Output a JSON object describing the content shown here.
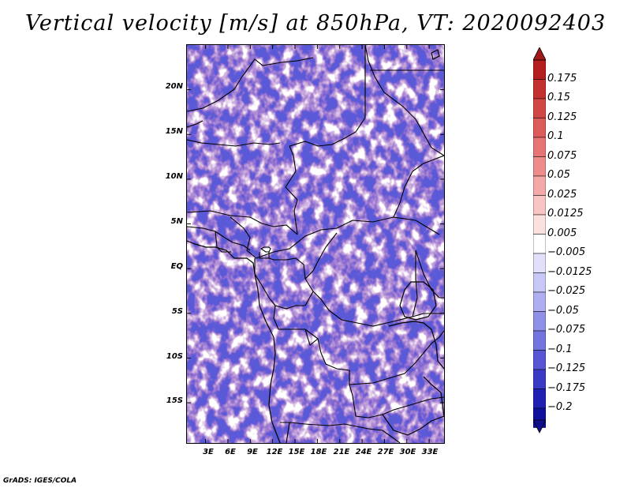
{
  "title": "Vertical velocity [m/s] at 850hPa, VT: 2020092403",
  "credit": "GrADS: IGES/COLA",
  "map": {
    "lat_labels": [
      "20N",
      "15N",
      "10N",
      "5N",
      "EQ",
      "5S",
      "10S",
      "15S"
    ],
    "lon_labels": [
      "3E",
      "6E",
      "9E",
      "12E",
      "15E",
      "18E",
      "21E",
      "24E",
      "27E",
      "30E",
      "33E"
    ],
    "lon_range": [
      0.5,
      35.0
    ],
    "lat_range": [
      -19.5,
      25.0
    ],
    "tick_lats": [
      20,
      15,
      10,
      5,
      0,
      -5,
      -10,
      -15
    ],
    "tick_lons": [
      3,
      6,
      9,
      12,
      15,
      18,
      21,
      24,
      27,
      30,
      33
    ]
  },
  "colorbar": {
    "labels": [
      "0.175",
      "0.15",
      "0.125",
      "0.1",
      "0.075",
      "0.05",
      "0.025",
      "0.0125",
      "0.005",
      "−0.005",
      "−0.0125",
      "−0.025",
      "−0.05",
      "−0.075",
      "−0.1",
      "−0.125",
      "−0.175",
      "−0.2"
    ],
    "colors": [
      "#b41e1e",
      "#c43030",
      "#d24646",
      "#dc5c5c",
      "#e67474",
      "#ee8c8c",
      "#f4a8a8",
      "#f8c4c4",
      "#fce0e0",
      "#ffffff",
      "#e0e0fa",
      "#c8c8f6",
      "#aeaef0",
      "#9090e8",
      "#7474e0",
      "#5656d4",
      "#3a3ac6",
      "#2020b2",
      "#10109e"
    ],
    "top_arrow_color": "#a01818",
    "bottom_arrow_color": "#10108a"
  },
  "colors": {
    "positive": "#e05050",
    "negative": "#5a5ad8",
    "border": "#000000"
  }
}
